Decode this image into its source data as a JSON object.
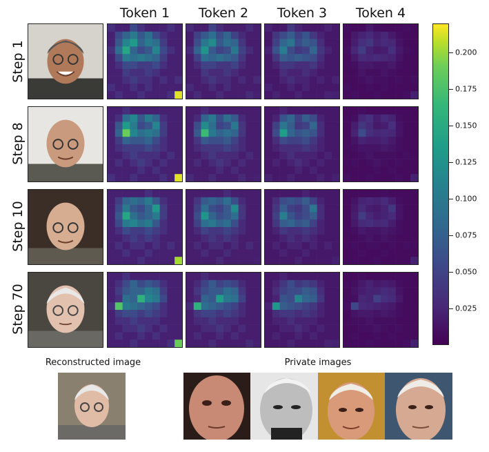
{
  "columns": [
    "Token 1",
    "Token 2",
    "Token 3",
    "Token 4"
  ],
  "rows": [
    "Step 1",
    "Step 8",
    "Step 10",
    "Step 70"
  ],
  "colorbar": {
    "ticks": [
      "0.025",
      "0.050",
      "0.075",
      "0.100",
      "0.125",
      "0.150",
      "0.175",
      "0.200"
    ],
    "tick_values": [
      0.025,
      0.05,
      0.075,
      0.1,
      0.125,
      0.15,
      0.175,
      0.2
    ],
    "min": 0.0,
    "max": 0.22,
    "colormap": "viridis"
  },
  "captions": {
    "reconstructed": "Reconstructed image",
    "private": "Private images"
  },
  "colors": {
    "background": "#ffffff",
    "viridis_low": "#440154",
    "viridis_high": "#fde725"
  },
  "chart_data": {
    "type": "heatmap",
    "grid_size": 10,
    "row_labels": [
      "Step 1",
      "Step 8",
      "Step 10",
      "Step 70"
    ],
    "column_labels": [
      "Token 1",
      "Token 2",
      "Token 3",
      "Token 4"
    ],
    "vmin": 0.0,
    "vmax": 0.22,
    "token_scale": [
      1.0,
      0.88,
      0.72,
      0.3
    ],
    "step_maps": [
      [
        [
          0.03,
          0.02,
          0.02,
          0.05,
          0.03,
          0.02,
          0.02,
          0.02,
          0.03,
          0.02
        ],
        [
          0.02,
          0.05,
          0.07,
          0.09,
          0.06,
          0.08,
          0.05,
          0.03,
          0.02,
          0.02
        ],
        [
          0.02,
          0.06,
          0.1,
          0.12,
          0.07,
          0.09,
          0.08,
          0.04,
          0.02,
          0.02
        ],
        [
          0.03,
          0.08,
          0.13,
          0.07,
          0.05,
          0.06,
          0.1,
          0.05,
          0.03,
          0.02
        ],
        [
          0.02,
          0.05,
          0.09,
          0.08,
          0.09,
          0.08,
          0.07,
          0.04,
          0.02,
          0.02
        ],
        [
          0.02,
          0.03,
          0.05,
          0.05,
          0.04,
          0.04,
          0.05,
          0.03,
          0.02,
          0.02
        ],
        [
          0.02,
          0.02,
          0.04,
          0.03,
          0.03,
          0.04,
          0.03,
          0.02,
          0.02,
          0.02
        ],
        [
          0.02,
          0.02,
          0.03,
          0.04,
          0.03,
          0.03,
          0.02,
          0.03,
          0.02,
          0.03
        ],
        [
          0.03,
          0.02,
          0.02,
          0.03,
          0.02,
          0.03,
          0.02,
          0.02,
          0.02,
          0.02
        ],
        [
          0.02,
          0.03,
          0.02,
          0.02,
          0.03,
          0.02,
          0.02,
          0.02,
          0.03,
          0.21
        ]
      ],
      [
        [
          0.02,
          0.02,
          0.03,
          0.02,
          0.02,
          0.02,
          0.02,
          0.02,
          0.02,
          0.02
        ],
        [
          0.02,
          0.03,
          0.08,
          0.1,
          0.06,
          0.09,
          0.07,
          0.03,
          0.02,
          0.02
        ],
        [
          0.02,
          0.06,
          0.12,
          0.09,
          0.05,
          0.06,
          0.1,
          0.04,
          0.02,
          0.02
        ],
        [
          0.02,
          0.07,
          0.17,
          0.1,
          0.08,
          0.09,
          0.08,
          0.04,
          0.02,
          0.02
        ],
        [
          0.02,
          0.04,
          0.07,
          0.06,
          0.06,
          0.07,
          0.05,
          0.03,
          0.02,
          0.02
        ],
        [
          0.02,
          0.03,
          0.04,
          0.04,
          0.04,
          0.05,
          0.04,
          0.03,
          0.02,
          0.02
        ],
        [
          0.02,
          0.02,
          0.03,
          0.04,
          0.03,
          0.03,
          0.03,
          0.02,
          0.03,
          0.02
        ],
        [
          0.02,
          0.03,
          0.02,
          0.03,
          0.04,
          0.03,
          0.02,
          0.03,
          0.02,
          0.02
        ],
        [
          0.02,
          0.02,
          0.02,
          0.02,
          0.03,
          0.02,
          0.03,
          0.02,
          0.02,
          0.02
        ],
        [
          0.03,
          0.02,
          0.02,
          0.03,
          0.02,
          0.02,
          0.02,
          0.03,
          0.02,
          0.21
        ]
      ],
      [
        [
          0.02,
          0.02,
          0.02,
          0.02,
          0.02,
          0.03,
          0.02,
          0.02,
          0.02,
          0.02
        ],
        [
          0.02,
          0.04,
          0.07,
          0.08,
          0.07,
          0.09,
          0.06,
          0.03,
          0.02,
          0.02
        ],
        [
          0.02,
          0.05,
          0.09,
          0.06,
          0.05,
          0.07,
          0.12,
          0.04,
          0.02,
          0.02
        ],
        [
          0.02,
          0.06,
          0.13,
          0.08,
          0.06,
          0.07,
          0.09,
          0.04,
          0.02,
          0.02
        ],
        [
          0.02,
          0.05,
          0.09,
          0.1,
          0.08,
          0.09,
          0.06,
          0.03,
          0.02,
          0.02
        ],
        [
          0.02,
          0.03,
          0.05,
          0.04,
          0.04,
          0.05,
          0.04,
          0.03,
          0.02,
          0.02
        ],
        [
          0.02,
          0.02,
          0.03,
          0.04,
          0.03,
          0.04,
          0.03,
          0.02,
          0.02,
          0.02
        ],
        [
          0.02,
          0.03,
          0.02,
          0.03,
          0.03,
          0.02,
          0.03,
          0.02,
          0.03,
          0.02
        ],
        [
          0.02,
          0.02,
          0.03,
          0.02,
          0.02,
          0.03,
          0.02,
          0.02,
          0.02,
          0.02
        ],
        [
          0.02,
          0.02,
          0.02,
          0.02,
          0.03,
          0.02,
          0.02,
          0.02,
          0.02,
          0.19
        ]
      ],
      [
        [
          0.02,
          0.02,
          0.03,
          0.02,
          0.02,
          0.02,
          0.02,
          0.02,
          0.02,
          0.02
        ],
        [
          0.02,
          0.03,
          0.05,
          0.07,
          0.05,
          0.06,
          0.05,
          0.03,
          0.02,
          0.02
        ],
        [
          0.02,
          0.04,
          0.06,
          0.07,
          0.07,
          0.09,
          0.08,
          0.04,
          0.02,
          0.02
        ],
        [
          0.02,
          0.03,
          0.08,
          0.07,
          0.14,
          0.1,
          0.09,
          0.05,
          0.02,
          0.02
        ],
        [
          0.03,
          0.16,
          0.09,
          0.08,
          0.07,
          0.06,
          0.05,
          0.03,
          0.02,
          0.02
        ],
        [
          0.02,
          0.04,
          0.05,
          0.05,
          0.04,
          0.05,
          0.04,
          0.03,
          0.02,
          0.02
        ],
        [
          0.02,
          0.03,
          0.03,
          0.04,
          0.03,
          0.03,
          0.03,
          0.02,
          0.02,
          0.02
        ],
        [
          0.02,
          0.02,
          0.03,
          0.03,
          0.04,
          0.03,
          0.02,
          0.03,
          0.02,
          0.02
        ],
        [
          0.02,
          0.03,
          0.02,
          0.02,
          0.03,
          0.02,
          0.03,
          0.02,
          0.02,
          0.02
        ],
        [
          0.02,
          0.02,
          0.02,
          0.03,
          0.02,
          0.02,
          0.02,
          0.02,
          0.03,
          0.17
        ]
      ]
    ]
  }
}
